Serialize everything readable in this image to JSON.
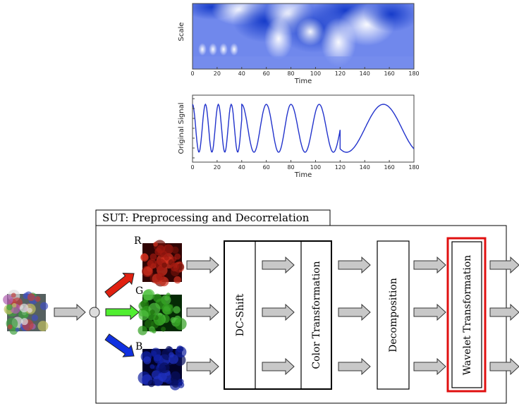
{
  "scalogram": {
    "y_label": "Scale",
    "x_label": "Time",
    "x_ticks": [
      0,
      20,
      40,
      60,
      80,
      100,
      120,
      140,
      160,
      180
    ]
  },
  "signal": {
    "y_label": "Original Signal",
    "x_label": "Time",
    "x_ticks": [
      0,
      20,
      40,
      60,
      80,
      100,
      120,
      140,
      160,
      180
    ]
  },
  "diagram": {
    "title": "SUT: Preprocessing and Decorrelation",
    "channels": [
      "R",
      "G",
      "B"
    ],
    "blocks": [
      "DC-Shift",
      "Color Transformation",
      "Decomposition",
      "Wavelet Transformation"
    ]
  }
}
